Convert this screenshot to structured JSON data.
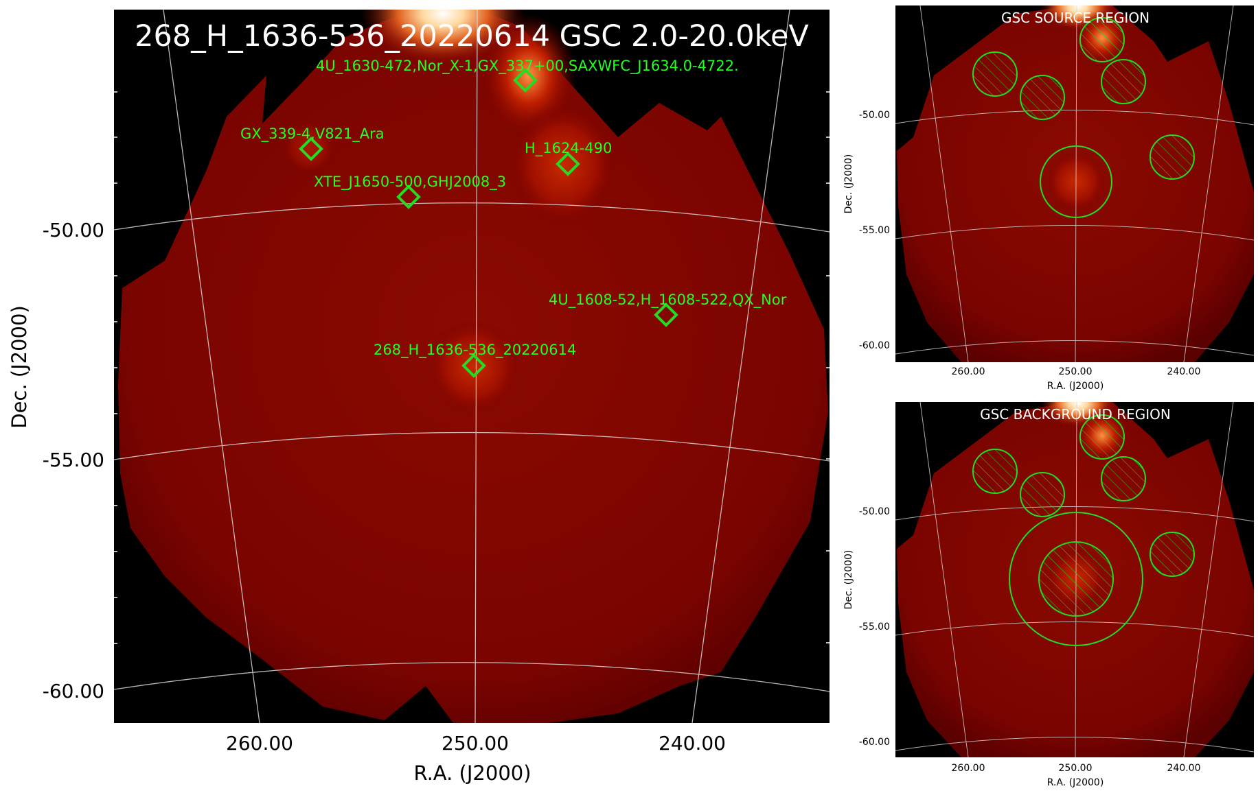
{
  "main_panel": {
    "title": "268_H_1636-536_20220614 GSC 2.0-20.0keV",
    "xlabel": "R.A. (J2000)",
    "ylabel": "Dec. (J2000)",
    "x_ticks": [
      "260.00",
      "250.00",
      "240.00"
    ],
    "y_ticks": [
      "-50.00",
      "-55.00",
      "-60.00"
    ],
    "sources": [
      {
        "label": "4U_1630-472,Nor_X-1,GX_337+00,SAXWFC_J1634.0-4722.",
        "ra": 247.6,
        "dec": -47.3
      },
      {
        "label": "GX_339-4,V821_Ara",
        "ra": 257.5,
        "dec": -48.2
      },
      {
        "label": "H_1624-490",
        "ra": 245.7,
        "dec": -48.5
      },
      {
        "label": "XTE_J1650-500,GHJ2008_3",
        "ra": 253.1,
        "dec": -49.2
      },
      {
        "label": "4U_1608-52,H_1608-522,QX_Nor",
        "ra": 241.2,
        "dec": -52.0
      },
      {
        "label": "268_H_1636-536_20220614",
        "ra": 250.1,
        "dec": -53.1
      }
    ],
    "colors": {
      "marker": "#22dd22",
      "background": "#000000",
      "image": "#7a0000"
    }
  },
  "source_panel": {
    "title": "GSC SOURCE REGION",
    "xlabel": "R.A. (J2000)",
    "ylabel": "Dec. (J2000)",
    "x_ticks": [
      "260.00",
      "250.00",
      "240.00"
    ],
    "y_ticks": [
      "-50.00",
      "-55.00",
      "-60.00"
    ]
  },
  "background_panel": {
    "title": "GSC BACKGROUND REGION",
    "xlabel": "R.A. (J2000)",
    "ylabel": "Dec. (J2000)",
    "x_ticks": [
      "260.00",
      "250.00",
      "240.00"
    ],
    "y_ticks": [
      "-50.00",
      "-55.00",
      "-60.00"
    ]
  }
}
